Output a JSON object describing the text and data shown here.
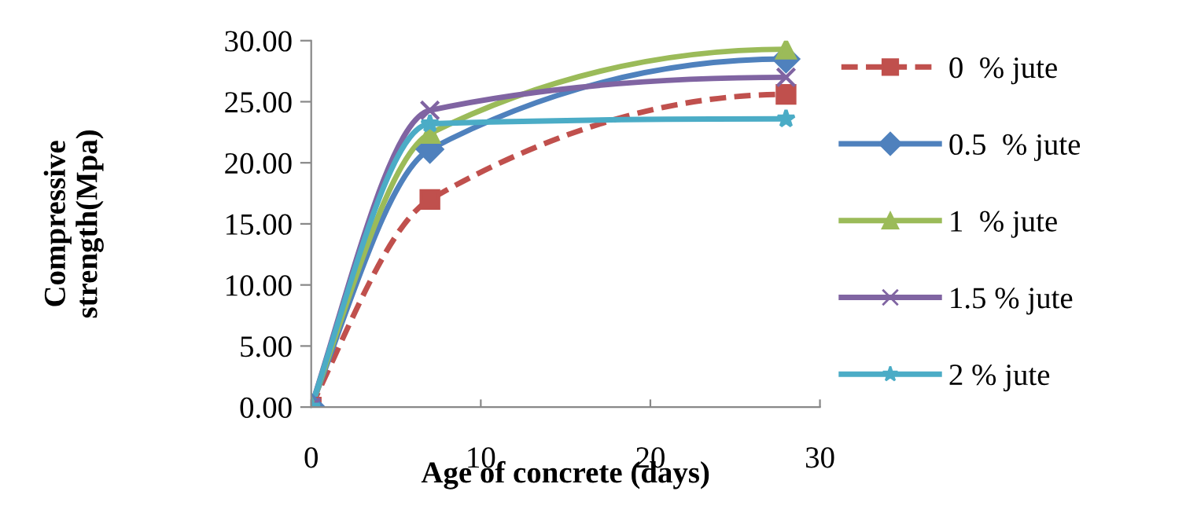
{
  "chart_data": {
    "type": "line",
    "xlabel": "Age of concrete (days)",
    "ylabel": "Compressive\nstrength(Mpa)",
    "x": [
      0,
      7,
      28
    ],
    "series": [
      {
        "name": "0  % jute",
        "color": "#c0504d",
        "values": [
          0,
          17.0,
          25.6
        ],
        "marker": "square",
        "line_style": "dashed"
      },
      {
        "name": "0.5  % jute",
        "color": "#4f81bd",
        "values": [
          0,
          21.1,
          28.5
        ],
        "marker": "diamond",
        "line_style": "solid"
      },
      {
        "name": "1  % jute",
        "color": "#9bbb59",
        "values": [
          0,
          22.4,
          29.3
        ],
        "marker": "triangle",
        "line_style": "solid"
      },
      {
        "name": "1.5 % jute",
        "color": "#8064a2",
        "values": [
          0,
          24.3,
          27.0
        ],
        "marker": "cross",
        "line_style": "solid"
      },
      {
        "name": "2 % jute",
        "color": "#4bacc6",
        "values": [
          0,
          23.2,
          23.6
        ],
        "marker": "star",
        "line_style": "solid"
      }
    ],
    "xlim": [
      0,
      30
    ],
    "xticks": [
      0,
      10,
      20,
      30
    ],
    "ylim": [
      0,
      30
    ],
    "yticks": [
      {
        "value": 0,
        "label": "0.00"
      },
      {
        "value": 5,
        "label": "5.00"
      },
      {
        "value": 10,
        "label": "10.00"
      },
      {
        "value": 15,
        "label": "15.00"
      },
      {
        "value": 20,
        "label": "20.00"
      },
      {
        "value": 25,
        "label": "25.00"
      },
      {
        "value": 30,
        "label": "30.00"
      }
    ],
    "grid": false,
    "legend": "right"
  }
}
